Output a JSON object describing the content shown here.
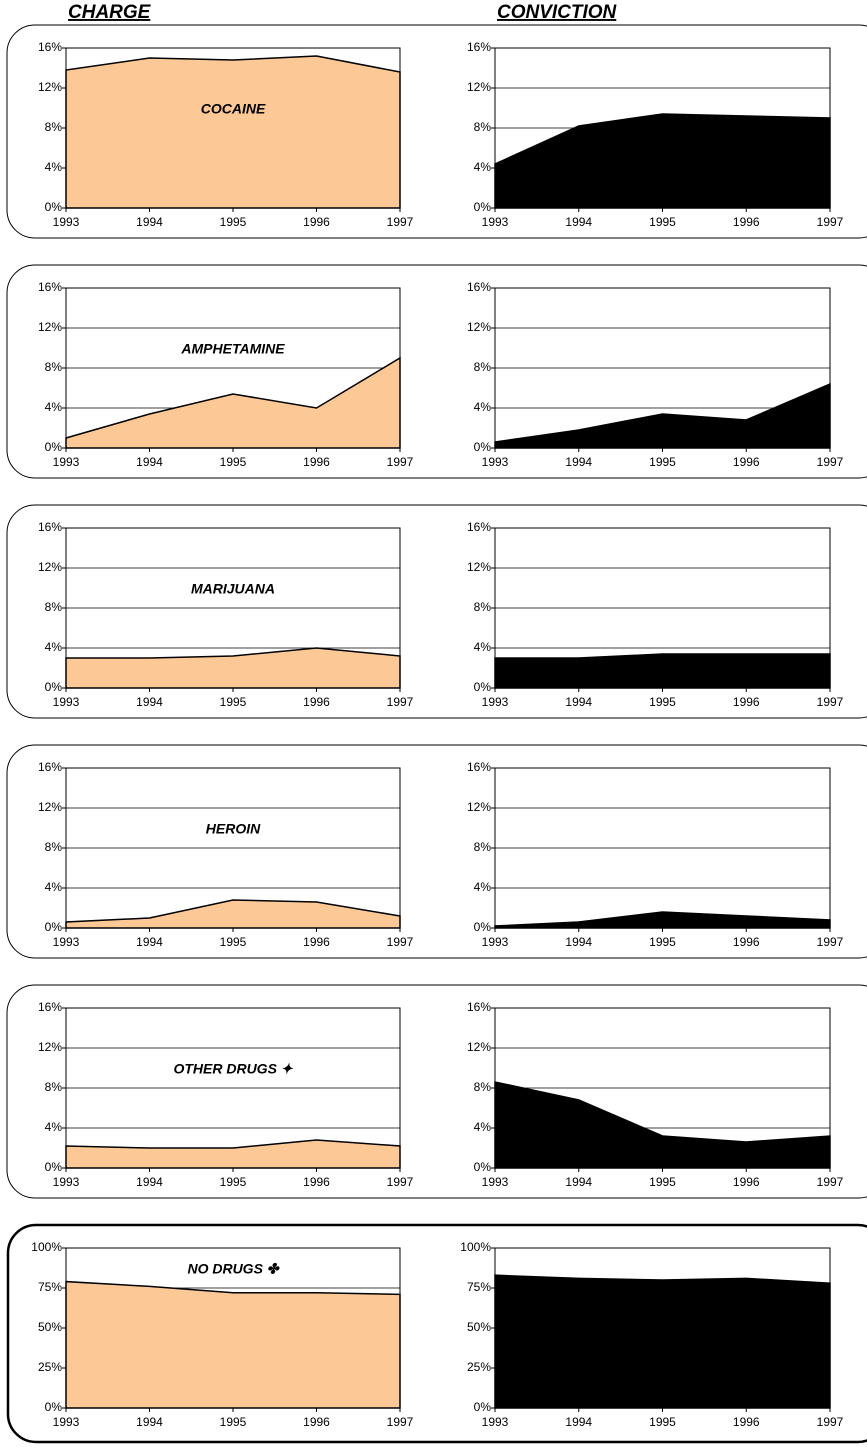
{
  "columns": [
    "CHARGE",
    "CONVICTION"
  ],
  "chart_data": [
    {
      "type": "area",
      "title": "COCAINE",
      "categories": [
        "1993",
        "1994",
        "1995",
        "1996",
        "1997"
      ],
      "values": [
        13.8,
        15,
        14.8,
        15.2,
        13.6
      ],
      "color": "#fbc896",
      "ylim": [
        0,
        16
      ],
      "yticks": [
        {
          "value": 0,
          "label": "0%"
        },
        {
          "value": 4,
          "label": "4%"
        },
        {
          "value": 8,
          "label": "8%"
        },
        {
          "value": 12,
          "label": "12%"
        },
        {
          "value": 16,
          "label": "16%"
        }
      ],
      "grid": true
    },
    {
      "type": "area",
      "categories": [
        "1993",
        "1994",
        "1995",
        "1996",
        "1997"
      ],
      "values": [
        4.4,
        8.2,
        9.4,
        9.2,
        9.0
      ],
      "color": "#000000",
      "ylim": [
        0,
        16
      ],
      "yticks": [
        {
          "value": 0,
          "label": "0%"
        },
        {
          "value": 4,
          "label": "4%"
        },
        {
          "value": 8,
          "label": "8%"
        },
        {
          "value": 12,
          "label": "12%"
        },
        {
          "value": 16,
          "label": "16%"
        }
      ],
      "grid": true
    },
    {
      "type": "area",
      "title": "AMPHETAMINE",
      "categories": [
        "1993",
        "1994",
        "1995",
        "1996",
        "1997"
      ],
      "values": [
        1.0,
        3.4,
        5.4,
        4.0,
        9.0
      ],
      "color": "#fbc896",
      "ylim": [
        0,
        16
      ],
      "yticks": [
        {
          "value": 0,
          "label": "0%"
        },
        {
          "value": 4,
          "label": "4%"
        },
        {
          "value": 8,
          "label": "8%"
        },
        {
          "value": 12,
          "label": "12%"
        },
        {
          "value": 16,
          "label": "16%"
        }
      ],
      "grid": true
    },
    {
      "type": "area",
      "categories": [
        "1993",
        "1994",
        "1995",
        "1996",
        "1997"
      ],
      "values": [
        0.6,
        1.8,
        3.4,
        2.8,
        6.4
      ],
      "color": "#000000",
      "ylim": [
        0,
        16
      ],
      "yticks": [
        {
          "value": 0,
          "label": "0%"
        },
        {
          "value": 4,
          "label": "4%"
        },
        {
          "value": 8,
          "label": "8%"
        },
        {
          "value": 12,
          "label": "12%"
        },
        {
          "value": 16,
          "label": "16%"
        }
      ],
      "grid": true
    },
    {
      "type": "area",
      "title": "MARIJUANA",
      "categories": [
        "1993",
        "1994",
        "1995",
        "1996",
        "1997"
      ],
      "values": [
        3.0,
        3.0,
        3.2,
        4.0,
        3.2
      ],
      "color": "#fbc896",
      "ylim": [
        0,
        16
      ],
      "yticks": [
        {
          "value": 0,
          "label": "0%"
        },
        {
          "value": 4,
          "label": "4%"
        },
        {
          "value": 8,
          "label": "8%"
        },
        {
          "value": 12,
          "label": "12%"
        },
        {
          "value": 16,
          "label": "16%"
        }
      ],
      "grid": true
    },
    {
      "type": "area",
      "categories": [
        "1993",
        "1994",
        "1995",
        "1996",
        "1997"
      ],
      "values": [
        3.0,
        3.0,
        3.4,
        3.4,
        3.4
      ],
      "color": "#000000",
      "ylim": [
        0,
        16
      ],
      "yticks": [
        {
          "value": 0,
          "label": "0%"
        },
        {
          "value": 4,
          "label": "4%"
        },
        {
          "value": 8,
          "label": "8%"
        },
        {
          "value": 12,
          "label": "12%"
        },
        {
          "value": 16,
          "label": "16%"
        }
      ],
      "grid": true
    },
    {
      "type": "area",
      "title": "HEROIN",
      "categories": [
        "1993",
        "1994",
        "1995",
        "1996",
        "1997"
      ],
      "values": [
        0.6,
        1.0,
        2.8,
        2.6,
        1.2
      ],
      "color": "#fbc896",
      "ylim": [
        0,
        16
      ],
      "yticks": [
        {
          "value": 0,
          "label": "0%"
        },
        {
          "value": 4,
          "label": "4%"
        },
        {
          "value": 8,
          "label": "8%"
        },
        {
          "value": 12,
          "label": "12%"
        },
        {
          "value": 16,
          "label": "16%"
        }
      ],
      "grid": true
    },
    {
      "type": "area",
      "categories": [
        "1993",
        "1994",
        "1995",
        "1996",
        "1997"
      ],
      "values": [
        0.2,
        0.6,
        1.6,
        1.2,
        0.8
      ],
      "color": "#000000",
      "ylim": [
        0,
        16
      ],
      "yticks": [
        {
          "value": 0,
          "label": "0%"
        },
        {
          "value": 4,
          "label": "4%"
        },
        {
          "value": 8,
          "label": "8%"
        },
        {
          "value": 12,
          "label": "12%"
        },
        {
          "value": 16,
          "label": "16%"
        }
      ],
      "grid": true
    },
    {
      "type": "area",
      "title": "OTHER DRUGS ✦",
      "categories": [
        "1993",
        "1994",
        "1995",
        "1996",
        "1997"
      ],
      "values": [
        2.2,
        2.0,
        2.0,
        2.8,
        2.2
      ],
      "color": "#fbc896",
      "ylim": [
        0,
        16
      ],
      "yticks": [
        {
          "value": 0,
          "label": "0%"
        },
        {
          "value": 4,
          "label": "4%"
        },
        {
          "value": 8,
          "label": "8%"
        },
        {
          "value": 12,
          "label": "12%"
        },
        {
          "value": 16,
          "label": "16%"
        }
      ],
      "grid": true
    },
    {
      "type": "area",
      "categories": [
        "1993",
        "1994",
        "1995",
        "1996",
        "1997"
      ],
      "values": [
        8.6,
        6.8,
        3.2,
        2.6,
        3.2
      ],
      "color": "#000000",
      "ylim": [
        0,
        16
      ],
      "yticks": [
        {
          "value": 0,
          "label": "0%"
        },
        {
          "value": 4,
          "label": "4%"
        },
        {
          "value": 8,
          "label": "8%"
        },
        {
          "value": 12,
          "label": "12%"
        },
        {
          "value": 16,
          "label": "16%"
        }
      ],
      "grid": true
    },
    {
      "type": "area",
      "title": "NO DRUGS ✤",
      "categories": [
        "1993",
        "1994",
        "1995",
        "1996",
        "1997"
      ],
      "values": [
        79,
        76,
        72,
        72,
        71
      ],
      "color": "#fbc896",
      "ylim": [
        0,
        100
      ],
      "yticks": [
        {
          "value": 0,
          "label": "0%"
        },
        {
          "value": 25,
          "label": "25%"
        },
        {
          "value": 50,
          "label": "50%"
        },
        {
          "value": 75,
          "label": "75%"
        },
        {
          "value": 100,
          "label": "100%"
        }
      ],
      "grid": true
    },
    {
      "type": "area",
      "categories": [
        "1993",
        "1994",
        "1995",
        "1996",
        "1997"
      ],
      "values": [
        83,
        81,
        80,
        81,
        78
      ],
      "color": "#000000",
      "ylim": [
        0,
        100
      ],
      "yticks": [
        {
          "value": 0,
          "label": "0%"
        },
        {
          "value": 25,
          "label": "25%"
        },
        {
          "value": 50,
          "label": "50%"
        },
        {
          "value": 75,
          "label": "75%"
        },
        {
          "value": 100,
          "label": "100%"
        }
      ],
      "grid": true
    }
  ]
}
